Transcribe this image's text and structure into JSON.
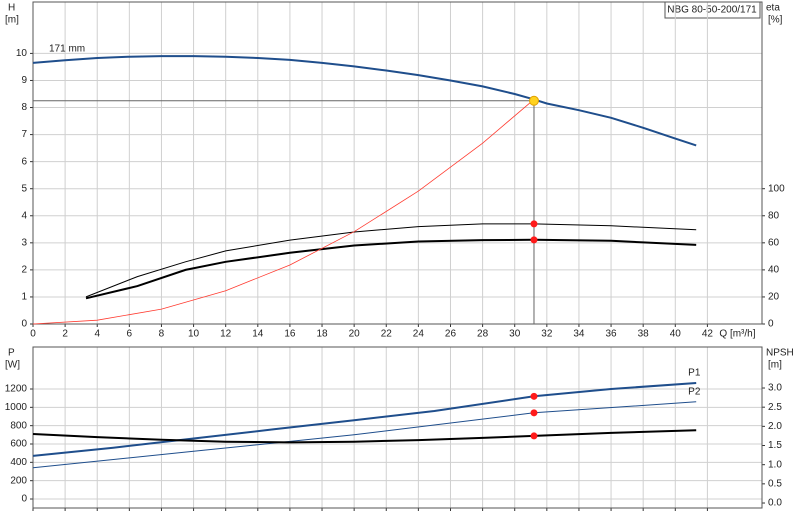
{
  "chart_data": [
    {
      "type": "line",
      "title": "NBG 80-50-200/171",
      "ylabel": "H",
      "yunit": "[m]",
      "y2label": "eta",
      "y2unit": "[%]",
      "xlabel": "Q [m³/h]",
      "xlim": [
        0,
        45.4
      ],
      "xticks": [
        0,
        2,
        4,
        6,
        8,
        10,
        12,
        14,
        16,
        18,
        20,
        22,
        24,
        26,
        28,
        30,
        32,
        34,
        36,
        38,
        40,
        42
      ],
      "ylim": [
        0,
        11.9
      ],
      "yticks": [
        0,
        1,
        2,
        3,
        4,
        5,
        6,
        7,
        8,
        9,
        10
      ],
      "y2lim": [
        0,
        238
      ],
      "y2ticks": [
        0,
        20,
        40,
        60,
        80,
        100
      ],
      "grid": true,
      "show_xtick_labels": true,
      "operating_point": {
        "x": 31.2,
        "y": 8.25
      },
      "series": [
        {
          "name": "171 mm",
          "color": "#1f4e8c",
          "width": 2,
          "x": [
            0,
            2,
            4,
            6,
            8,
            10,
            12,
            14,
            16,
            18,
            20,
            22,
            24,
            26,
            28,
            30,
            31.2,
            32,
            34,
            36,
            38,
            40,
            41.3
          ],
          "values": [
            9.65,
            9.75,
            9.83,
            9.88,
            9.9,
            9.9,
            9.88,
            9.83,
            9.76,
            9.65,
            9.52,
            9.37,
            9.2,
            9.0,
            8.78,
            8.5,
            8.3,
            8.15,
            7.9,
            7.62,
            7.25,
            6.85,
            6.6
          ]
        },
        {
          "color": "#000000",
          "width": 1,
          "axis": "y2",
          "dot": true,
          "x": [
            3.3,
            6.5,
            9.5,
            12,
            16,
            20,
            24,
            28,
            31.2,
            36,
            41.3
          ],
          "values": [
            20,
            35,
            46,
            54,
            62,
            68,
            72,
            74,
            74,
            72.6,
            69.6
          ]
        },
        {
          "color": "#000000",
          "width": 2,
          "axis": "y2",
          "dot": true,
          "x": [
            3.3,
            6.5,
            9.5,
            12,
            16,
            20,
            24,
            28,
            31.2,
            36,
            41.3
          ],
          "values": [
            19,
            28,
            40,
            46,
            52.6,
            58,
            61,
            62,
            62.2,
            61.5,
            58.5
          ]
        },
        {
          "color": "#ff3b30",
          "width": 0.8,
          "x": [
            0,
            4,
            8,
            12,
            16,
            20,
            24,
            28,
            31.2
          ],
          "values": [
            0,
            0.14,
            0.55,
            1.23,
            2.18,
            3.41,
            4.91,
            6.68,
            8.3
          ]
        }
      ]
    },
    {
      "type": "line",
      "ylabel": "P",
      "yunit": "[W]",
      "y2label": "NPSH",
      "y2unit": "[m]",
      "xlim": [
        0,
        45.4
      ],
      "xticks": [
        0,
        2,
        4,
        6,
        8,
        10,
        12,
        14,
        16,
        18,
        20,
        22,
        24,
        26,
        28,
        30,
        32,
        34,
        36,
        38,
        40,
        42
      ],
      "ylim": [
        -98,
        1658
      ],
      "yticks": [
        0,
        200,
        400,
        600,
        800,
        1000,
        1200
      ],
      "y2lim": [
        -0.13,
        4.07
      ],
      "y2ticks": [
        {
          "value": 0,
          "label": "0.0"
        },
        0.5,
        {
          "value": 1,
          "label": "1.0"
        },
        1.5,
        {
          "value": 2,
          "label": "2.0"
        },
        2.5,
        {
          "value": 3,
          "label": "3.0"
        }
      ],
      "grid": true,
      "show_xtick_labels": false,
      "series": [
        {
          "name": "P1",
          "color": "#1f4e8c",
          "width": 2,
          "dot": true,
          "x": [
            0,
            5,
            10,
            15,
            20,
            25,
            31.2,
            36,
            41.3
          ],
          "values": [
            470,
            560,
            660,
            760,
            860,
            960,
            1120,
            1200,
            1265
          ]
        },
        {
          "name": "P2",
          "color": "#1f4e8c",
          "width": 1,
          "dot": true,
          "x": [
            0,
            10,
            20,
            31.2,
            41.3
          ],
          "values": [
            340,
            520,
            700,
            940,
            1060
          ]
        },
        {
          "color": "#000000",
          "width": 2,
          "axis": "y2",
          "dot": true,
          "x": [
            0,
            4,
            8,
            12,
            16,
            20,
            24,
            28,
            31.2,
            36,
            41.3
          ],
          "values": [
            1.8,
            1.72,
            1.65,
            1.6,
            1.58,
            1.6,
            1.64,
            1.7,
            1.75,
            1.83,
            1.9
          ]
        }
      ]
    }
  ]
}
